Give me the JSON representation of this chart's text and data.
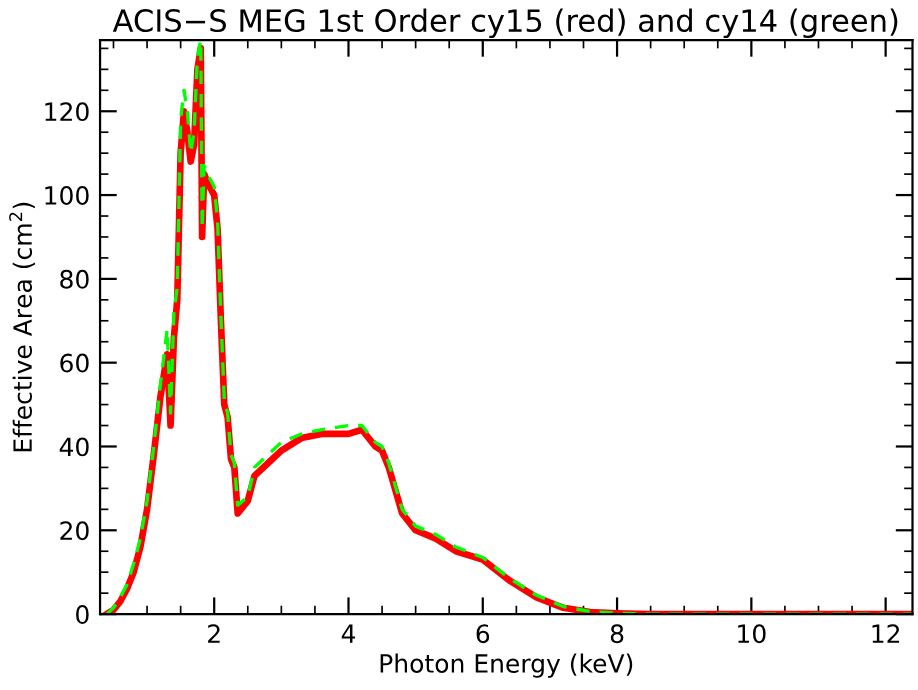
{
  "chart_data": {
    "type": "line",
    "title": "ACIS−S MEG 1st Order cy15 (red) and cy14 (green)",
    "xlabel": "Photon Energy (keV)",
    "ylabel": "Effective Area (cm$^{2}$)",
    "xlim": [
      0.3,
      12.4
    ],
    "ylim": [
      0,
      137
    ],
    "xticks": [
      2,
      4,
      6,
      8,
      10,
      12
    ],
    "yticks": [
      0,
      20,
      40,
      60,
      80,
      100,
      120
    ],
    "grid": false,
    "legend": false,
    "series": [
      {
        "color": "#ff0000",
        "line_style": "solid",
        "x": [
          0.4,
          0.5,
          0.6,
          0.7,
          0.8,
          0.9,
          1.0,
          1.1,
          1.2,
          1.3,
          1.35,
          1.4,
          1.45,
          1.5,
          1.55,
          1.6,
          1.65,
          1.7,
          1.75,
          1.8,
          1.82,
          1.85,
          1.9,
          2.0,
          2.05,
          2.1,
          2.15,
          2.2,
          2.25,
          2.3,
          2.35,
          2.5,
          2.6,
          2.8,
          3.0,
          3.3,
          3.6,
          4.0,
          4.2,
          4.4,
          4.5,
          4.6,
          4.8,
          5.0,
          5.3,
          5.6,
          6.0,
          6.4,
          6.8,
          7.2,
          7.6,
          8.0,
          8.5,
          12.4
        ],
        "values": [
          0,
          1,
          3,
          6,
          10,
          16,
          25,
          38,
          52,
          62,
          45,
          66,
          75,
          110,
          120,
          115,
          108,
          112,
          130,
          135,
          90,
          105,
          103,
          100,
          92,
          70,
          50,
          47,
          37,
          35,
          24,
          27,
          33,
          36,
          39,
          42,
          43,
          43,
          44,
          40,
          39,
          35,
          24,
          20,
          18,
          15,
          13,
          8,
          4,
          1.5,
          0.5,
          0.2,
          0,
          0
        ]
      },
      {
        "color": "#00ff00",
        "line_style": "dashed",
        "x": [
          0.4,
          0.5,
          0.6,
          0.7,
          0.8,
          0.9,
          1.0,
          1.1,
          1.2,
          1.3,
          1.35,
          1.4,
          1.45,
          1.5,
          1.55,
          1.6,
          1.65,
          1.7,
          1.75,
          1.8,
          1.82,
          1.85,
          1.9,
          2.0,
          2.05,
          2.1,
          2.15,
          2.2,
          2.25,
          2.3,
          2.35,
          2.5,
          2.6,
          2.8,
          3.0,
          3.3,
          3.6,
          4.0,
          4.2,
          4.4,
          4.5,
          4.6,
          4.8,
          5.0,
          5.3,
          5.6,
          6.0,
          6.4,
          6.8,
          7.2,
          7.6,
          8.0,
          8.5,
          12.4
        ],
        "values": [
          0,
          1.5,
          4,
          7,
          12,
          18,
          27,
          40,
          55,
          68,
          48,
          72,
          78,
          118,
          125,
          120,
          110,
          115,
          133,
          137,
          92,
          107,
          105,
          102,
          94,
          71,
          51,
          48,
          38,
          36,
          26,
          28,
          35,
          38,
          41,
          43,
          44,
          45,
          45,
          41,
          40,
          36,
          25,
          21,
          19,
          16,
          13.5,
          8.5,
          4.5,
          1.8,
          0.6,
          0.2,
          0,
          0
        ]
      }
    ]
  }
}
